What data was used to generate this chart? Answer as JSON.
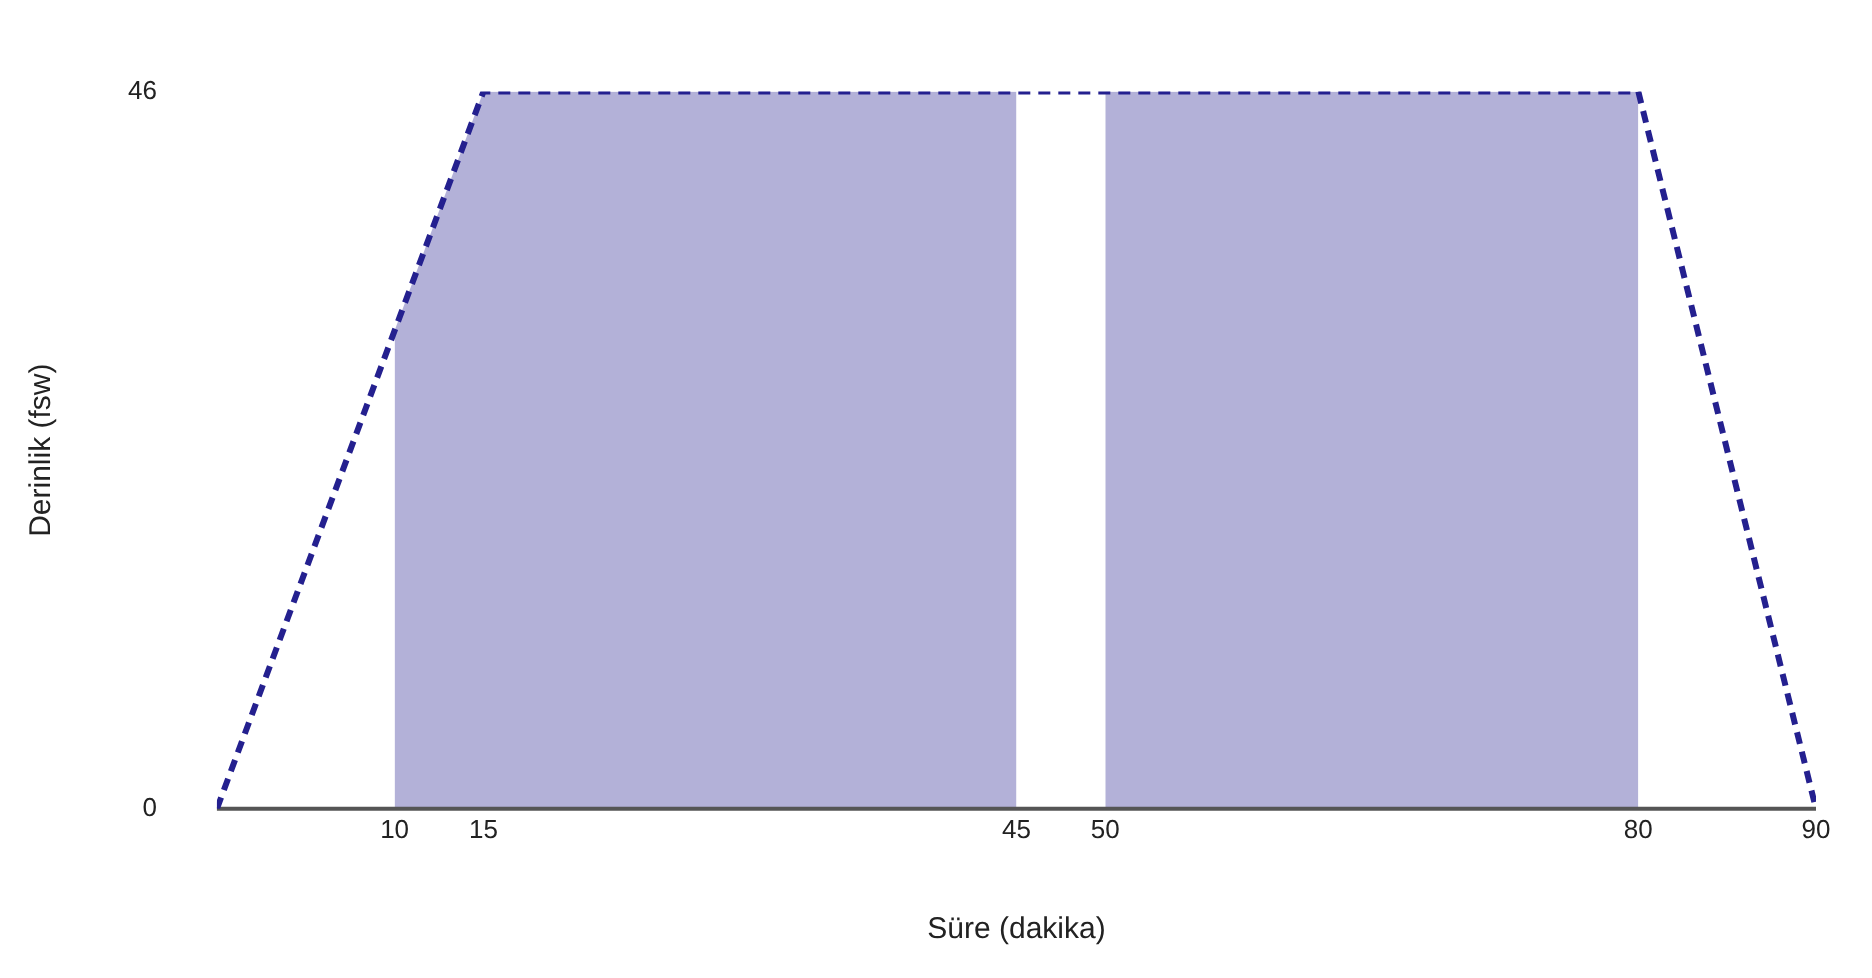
{
  "chart_data": {
    "type": "line",
    "xlabel": "Süre (dakika)",
    "ylabel": "Derinlik (fsw)",
    "x": [
      0,
      15,
      80,
      90
    ],
    "series": [
      {
        "color": "#24208f",
        "values": [
          0,
          46,
          46,
          0
        ]
      }
    ],
    "xlim": [
      0,
      90
    ],
    "xticks": [
      10,
      15,
      45,
      50,
      80,
      90
    ],
    "ylim": [
      0,
      46
    ],
    "yticks": [
      0,
      46
    ],
    "bands": [
      {
        "axis": "x",
        "from": 10,
        "to": 45,
        "color": "#24208f"
      },
      {
        "axis": "x",
        "from": 50,
        "to": 80,
        "color": "#24208f"
      }
    ],
    "line_style": "dashed",
    "marker": "none",
    "grid": false,
    "legend": false
  }
}
